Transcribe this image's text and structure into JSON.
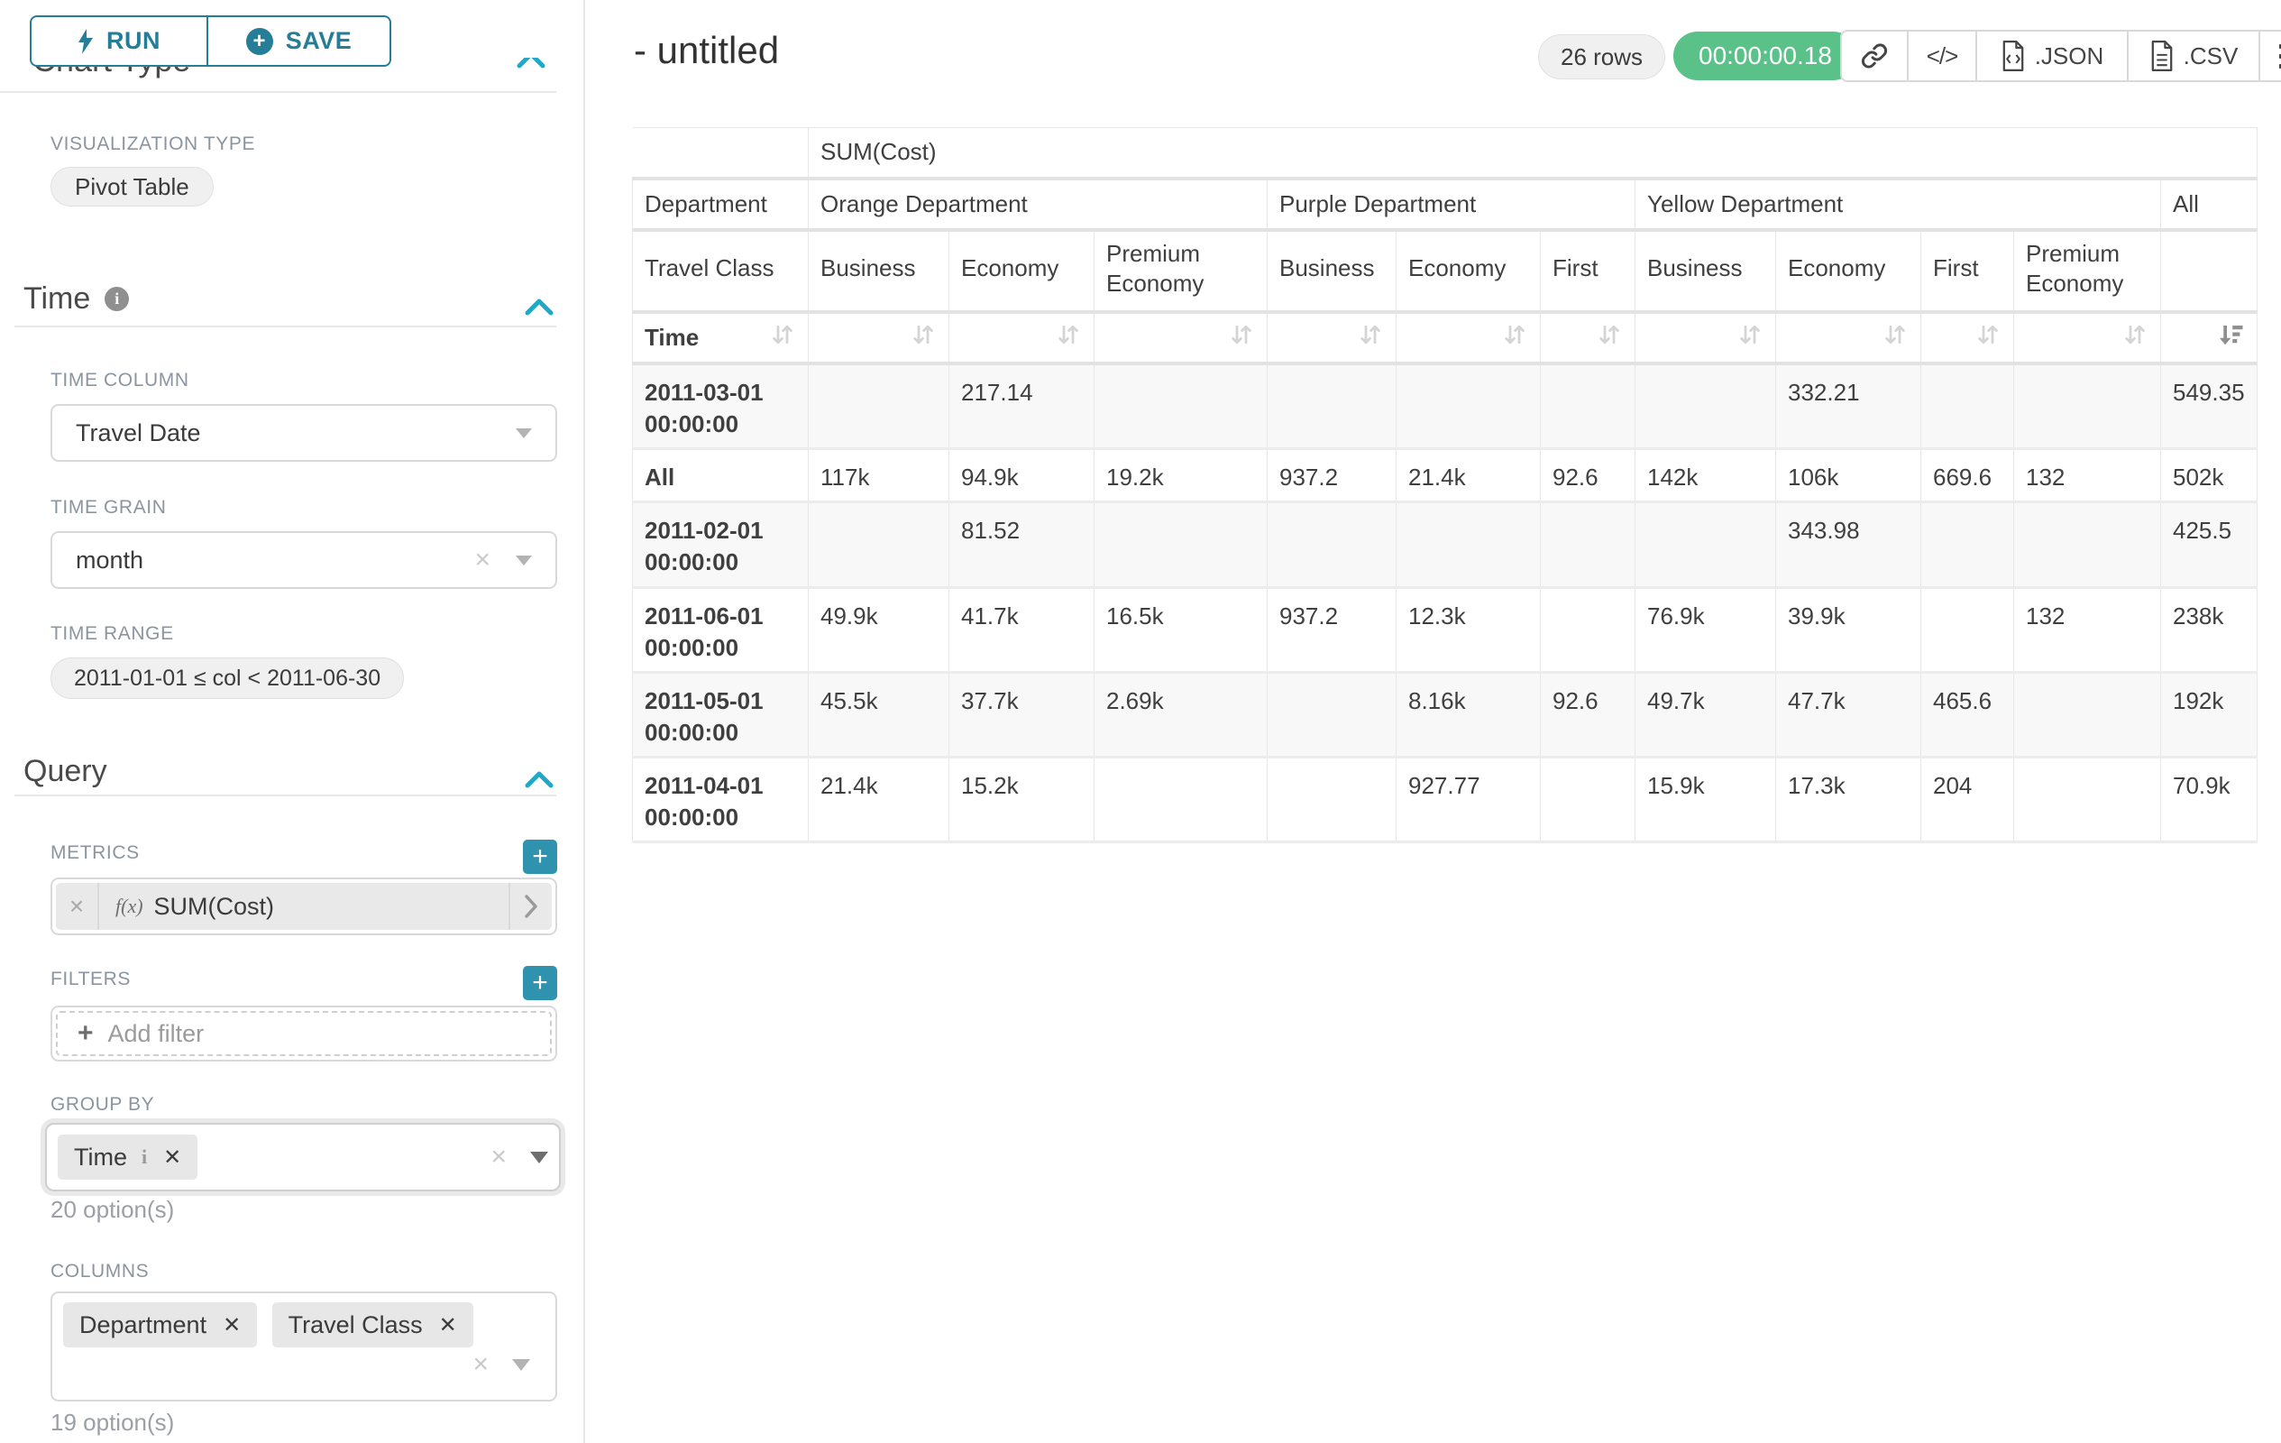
{
  "toolbar": {
    "run_label": "RUN",
    "save_label": "SAVE"
  },
  "sidebar": {
    "chart_type_title": "Chart Type",
    "viz": {
      "label": "VISUALIZATION TYPE",
      "value": "Pivot Table"
    },
    "time": {
      "title": "Time",
      "time_column_label": "TIME COLUMN",
      "time_column_value": "Travel Date",
      "time_grain_label": "TIME GRAIN",
      "time_grain_value": "month",
      "time_range_label": "TIME RANGE",
      "time_range_value": "2011-01-01 ≤ col < 2011-06-30"
    },
    "query": {
      "title": "Query",
      "metrics_label": "METRICS",
      "metric": {
        "fx": "f(x)",
        "label": "SUM(Cost)"
      },
      "filters_label": "FILTERS",
      "add_filter": "Add filter",
      "group_by_label": "GROUP BY",
      "group_by_tags": [
        "Time"
      ],
      "group_by_hint": "20 option(s)",
      "columns_label": "COLUMNS",
      "columns_tags": [
        "Department",
        "Travel Class"
      ],
      "columns_hint": "19 option(s)"
    }
  },
  "header": {
    "title": "- untitled",
    "rows_badge": "26 rows",
    "timer": "00:00:00.18",
    "export_json": ".JSON",
    "export_csv": ".CSV"
  },
  "icons": {
    "plus": "+",
    "close": "✕",
    "clear": "×",
    "info": "i",
    "code": "</>"
  },
  "colors": {
    "primary": "#20a7c9",
    "button_teal": "#257d98",
    "success_green": "#5ac189",
    "stripe": "#f8f8f8",
    "border": "#e7e7e7"
  },
  "pivot": {
    "metric_header": "SUM(Cost)",
    "department_label": "Department",
    "travel_class_label": "Travel Class",
    "time_label": "Time",
    "col_groups": [
      {
        "label": "Orange Department",
        "children": [
          "Business",
          "Economy",
          "Premium Economy"
        ]
      },
      {
        "label": "Purple Department",
        "children": [
          "Business",
          "Economy",
          "First"
        ]
      },
      {
        "label": "Yellow Department",
        "children": [
          "Business",
          "Economy",
          "First",
          "Premium Economy"
        ]
      },
      {
        "label": "All",
        "children": [
          ""
        ]
      }
    ],
    "rows": [
      {
        "label": "2011-03-01 00:00:00",
        "values": [
          "",
          "217.14",
          "",
          "",
          "",
          "",
          "",
          "332.21",
          "",
          "",
          "549.35"
        ]
      },
      {
        "label": "All",
        "values": [
          "117k",
          "94.9k",
          "19.2k",
          "937.2",
          "21.4k",
          "92.6",
          "142k",
          "106k",
          "669.6",
          "132",
          "502k"
        ]
      },
      {
        "label": "2011-02-01 00:00:00",
        "values": [
          "",
          "81.52",
          "",
          "",
          "",
          "",
          "",
          "343.98",
          "",
          "",
          "425.5"
        ]
      },
      {
        "label": "2011-06-01 00:00:00",
        "values": [
          "49.9k",
          "41.7k",
          "16.5k",
          "937.2",
          "12.3k",
          "",
          "76.9k",
          "39.9k",
          "",
          "132",
          "238k"
        ]
      },
      {
        "label": "2011-05-01 00:00:00",
        "values": [
          "45.5k",
          "37.7k",
          "2.69k",
          "",
          "8.16k",
          "92.6",
          "49.7k",
          "47.7k",
          "465.6",
          "",
          "192k"
        ]
      },
      {
        "label": "2011-04-01 00:00:00",
        "values": [
          "21.4k",
          "15.2k",
          "",
          "",
          "927.77",
          "",
          "15.9k",
          "17.3k",
          "204",
          "",
          "70.9k"
        ]
      }
    ],
    "sort_state": {
      "column": "All",
      "direction": "descending"
    }
  }
}
